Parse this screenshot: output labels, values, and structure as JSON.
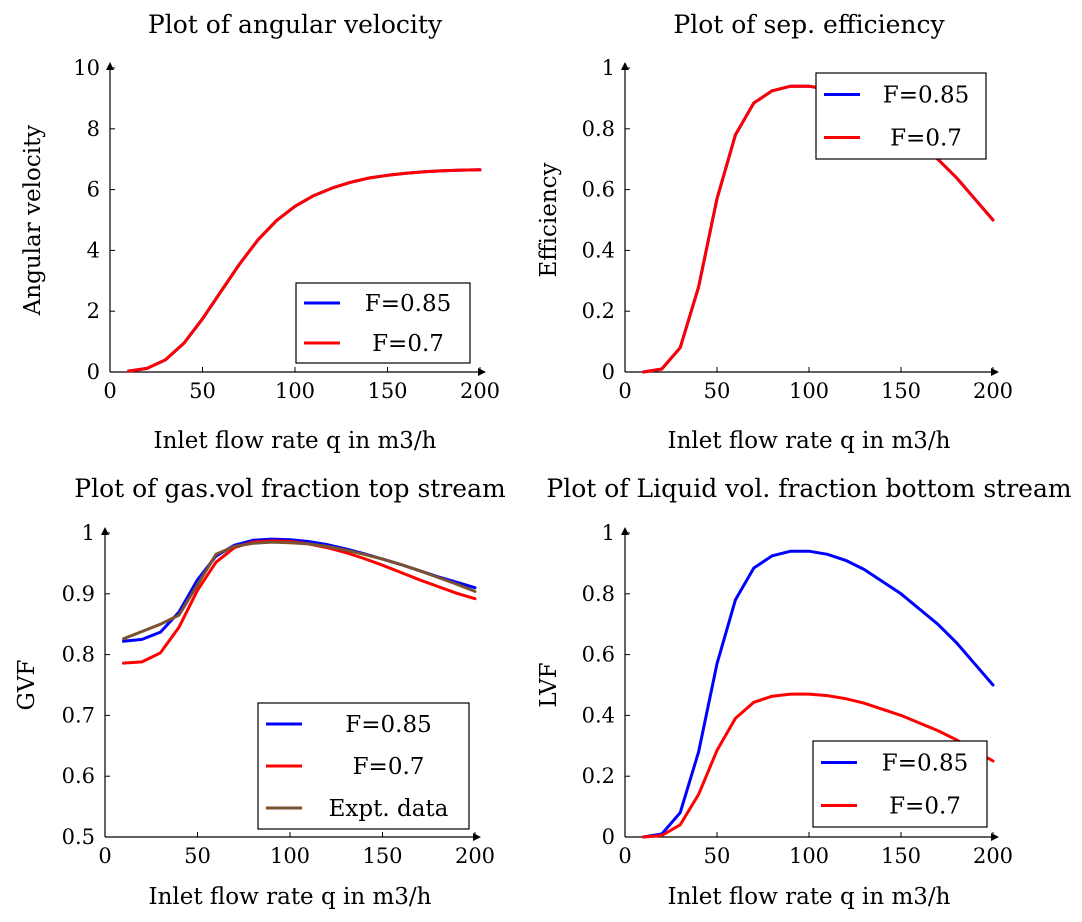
{
  "chart_data": [
    {
      "type": "line",
      "title": "Plot of angular velocity",
      "xlabel": "Inlet flow rate q in m3/h",
      "ylabel": "Angular velocity",
      "xlim": [
        0,
        200
      ],
      "ylim": [
        0,
        10
      ],
      "xticks": [
        0,
        50,
        100,
        150,
        200
      ],
      "yticks": [
        0,
        2,
        4,
        6,
        8,
        10
      ],
      "ytick_labels": [
        "0",
        "2",
        "4",
        "6",
        "8",
        "10"
      ],
      "legend_position": "bottom-right",
      "grid": false,
      "series": [
        {
          "name": "F=0.85",
          "color": "#0000ff",
          "x": [
            10,
            20,
            30,
            40,
            50,
            60,
            70,
            80,
            90,
            100,
            110,
            120,
            130,
            140,
            150,
            160,
            170,
            180,
            190,
            200
          ],
          "y": [
            0.03,
            0.12,
            0.4,
            0.95,
            1.75,
            2.65,
            3.55,
            4.35,
            4.98,
            5.45,
            5.8,
            6.05,
            6.24,
            6.38,
            6.47,
            6.54,
            6.59,
            6.62,
            6.64,
            6.65
          ]
        },
        {
          "name": "F=0.7",
          "color": "#ff0000",
          "x": [
            10,
            20,
            30,
            40,
            50,
            60,
            70,
            80,
            90,
            100,
            110,
            120,
            130,
            140,
            150,
            160,
            170,
            180,
            190,
            200
          ],
          "y": [
            0.03,
            0.12,
            0.4,
            0.95,
            1.75,
            2.65,
            3.55,
            4.35,
            4.98,
            5.45,
            5.8,
            6.05,
            6.24,
            6.38,
            6.47,
            6.54,
            6.59,
            6.62,
            6.64,
            6.65
          ]
        }
      ]
    },
    {
      "type": "line",
      "title": "Plot of sep. efficiency",
      "xlabel": "Inlet flow rate q in m3/h",
      "ylabel": "Efficiency",
      "xlim": [
        0,
        200
      ],
      "ylim": [
        0,
        1
      ],
      "xticks": [
        0,
        50,
        100,
        150,
        200
      ],
      "yticks": [
        0,
        0.2,
        0.4,
        0.6,
        0.8,
        1
      ],
      "ytick_labels": [
        "0",
        "0.2",
        "0.4",
        "0.6",
        "0.8",
        "1"
      ],
      "legend_position": "top-right",
      "grid": false,
      "series": [
        {
          "name": "F=0.85",
          "color": "#0000ff",
          "x": [
            10,
            20,
            30,
            40,
            50,
            60,
            70,
            80,
            90,
            100,
            110,
            120,
            130,
            140,
            150,
            160,
            170,
            180,
            190,
            200
          ],
          "y": [
            0,
            0.01,
            0.08,
            0.28,
            0.57,
            0.78,
            0.885,
            0.925,
            0.94,
            0.94,
            0.93,
            0.91,
            0.88,
            0.84,
            0.8,
            0.75,
            0.7,
            0.64,
            0.57,
            0.5
          ]
        },
        {
          "name": "F=0.7",
          "color": "#ff0000",
          "x": [
            10,
            20,
            30,
            40,
            50,
            60,
            70,
            80,
            90,
            100,
            110,
            120,
            130,
            140,
            150,
            160,
            170,
            180,
            190,
            200
          ],
          "y": [
            0,
            0.01,
            0.08,
            0.28,
            0.57,
            0.78,
            0.885,
            0.925,
            0.94,
            0.94,
            0.93,
            0.91,
            0.88,
            0.84,
            0.8,
            0.75,
            0.7,
            0.64,
            0.57,
            0.5
          ]
        }
      ]
    },
    {
      "type": "line",
      "title": "Plot of gas.vol fraction top stream",
      "xlabel": "Inlet flow rate q in m3/h",
      "ylabel": "GVF",
      "xlim": [
        0,
        200
      ],
      "ylim": [
        0.5,
        1
      ],
      "xticks": [
        0,
        50,
        100,
        150,
        200
      ],
      "yticks": [
        0.5,
        0.6,
        0.7,
        0.8,
        0.9,
        1
      ],
      "ytick_labels": [
        "0.5",
        "0.6",
        "0.7",
        "0.8",
        "0.9",
        "1"
      ],
      "legend_position": "bottom-right",
      "grid": false,
      "series": [
        {
          "name": "F=0.85",
          "color": "#0000ff",
          "x": [
            10,
            20,
            30,
            40,
            50,
            60,
            70,
            80,
            90,
            100,
            110,
            120,
            130,
            140,
            150,
            160,
            170,
            180,
            190,
            200
          ],
          "y": [
            0.822,
            0.825,
            0.837,
            0.87,
            0.923,
            0.962,
            0.98,
            0.988,
            0.99,
            0.989,
            0.986,
            0.981,
            0.974,
            0.966,
            0.957,
            0.948,
            0.938,
            0.928,
            0.919,
            0.91
          ]
        },
        {
          "name": "F=0.7",
          "color": "#ff0000",
          "x": [
            10,
            20,
            30,
            40,
            50,
            60,
            70,
            80,
            90,
            100,
            110,
            120,
            130,
            140,
            150,
            160,
            170,
            180,
            190,
            200
          ],
          "y": [
            0.786,
            0.788,
            0.803,
            0.845,
            0.906,
            0.952,
            0.976,
            0.985,
            0.987,
            0.986,
            0.982,
            0.976,
            0.968,
            0.958,
            0.947,
            0.935,
            0.923,
            0.912,
            0.901,
            0.892
          ]
        },
        {
          "name": "Expt. data",
          "color": "#7a5230",
          "x": [
            10,
            20,
            30,
            40,
            50,
            60,
            70,
            80,
            90,
            100,
            110,
            120,
            130,
            140,
            150,
            160,
            170,
            180,
            190,
            200
          ],
          "y": [
            0.826,
            0.838,
            0.85,
            0.865,
            0.915,
            0.965,
            0.978,
            0.983,
            0.985,
            0.984,
            0.982,
            0.978,
            0.972,
            0.965,
            0.957,
            0.948,
            0.938,
            0.927,
            0.916,
            0.904
          ]
        }
      ]
    },
    {
      "type": "line",
      "title": "Plot of Liquid vol. fraction bottom stream",
      "xlabel": "Inlet flow rate q in m3/h",
      "ylabel": "LVF",
      "xlim": [
        0,
        200
      ],
      "ylim": [
        0,
        1
      ],
      "xticks": [
        0,
        50,
        100,
        150,
        200
      ],
      "yticks": [
        0,
        0.2,
        0.4,
        0.6,
        0.8,
        1
      ],
      "ytick_labels": [
        "0",
        "0.2",
        "0.4",
        "0.6",
        "0.8",
        "1"
      ],
      "legend_position": "bottom-right",
      "grid": false,
      "series": [
        {
          "name": "F=0.85",
          "color": "#0000ff",
          "x": [
            10,
            20,
            30,
            40,
            50,
            60,
            70,
            80,
            90,
            100,
            110,
            120,
            130,
            140,
            150,
            160,
            170,
            180,
            190,
            200
          ],
          "y": [
            0,
            0.01,
            0.08,
            0.28,
            0.57,
            0.78,
            0.885,
            0.925,
            0.94,
            0.94,
            0.93,
            0.91,
            0.88,
            0.84,
            0.8,
            0.75,
            0.7,
            0.64,
            0.57,
            0.5
          ]
        },
        {
          "name": "F=0.7",
          "color": "#ff0000",
          "x": [
            10,
            20,
            30,
            40,
            50,
            60,
            70,
            80,
            90,
            100,
            110,
            120,
            130,
            140,
            150,
            160,
            170,
            180,
            190,
            200
          ],
          "y": [
            0,
            0.005,
            0.04,
            0.14,
            0.285,
            0.39,
            0.443,
            0.463,
            0.47,
            0.47,
            0.465,
            0.455,
            0.44,
            0.42,
            0.4,
            0.375,
            0.35,
            0.32,
            0.285,
            0.25
          ]
        }
      ]
    }
  ]
}
